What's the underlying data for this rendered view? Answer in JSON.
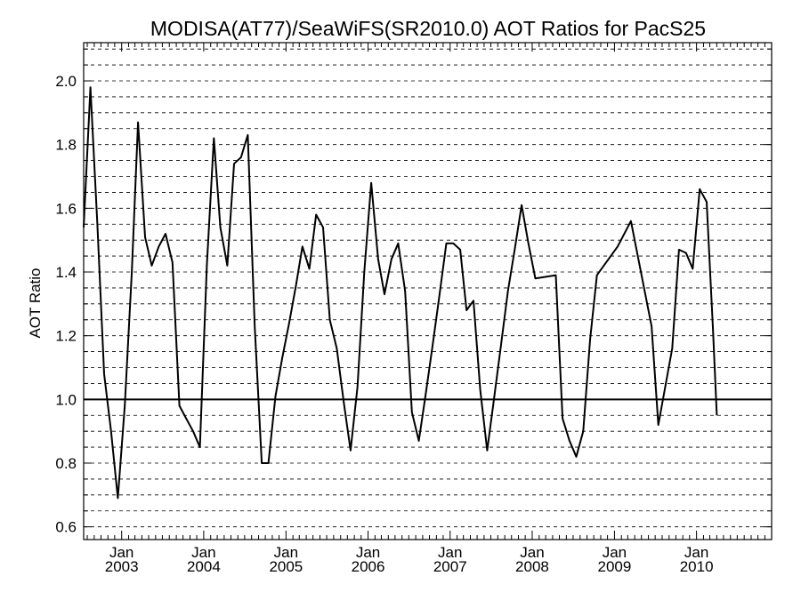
{
  "chart_data": {
    "type": "line",
    "title": "MODISA(AT77)/SeaWiFS(SR2010.0)  AOT Ratios for PacS25",
    "ylabel": "AOT Ratio",
    "xlabel": "",
    "ylim": [
      0.56,
      2.12
    ],
    "xlim": [
      "2002-07-16",
      "2010-12-01"
    ],
    "y_ticks": [
      0.6,
      0.8,
      1.0,
      1.2,
      1.4,
      1.6,
      1.8,
      2.0
    ],
    "y_tick_labels": [
      "0.6",
      "0.8",
      "1.0",
      "1.2",
      "1.4",
      "1.6",
      "1.8",
      "2.0"
    ],
    "x_ticks": [
      {
        "date": "2003-01-01",
        "month": "Jan",
        "year": "2003"
      },
      {
        "date": "2004-01-01",
        "month": "Jan",
        "year": "2004"
      },
      {
        "date": "2005-01-01",
        "month": "Jan",
        "year": "2005"
      },
      {
        "date": "2006-01-01",
        "month": "Jan",
        "year": "2006"
      },
      {
        "date": "2007-01-01",
        "month": "Jan",
        "year": "2007"
      },
      {
        "date": "2008-01-01",
        "month": "Jan",
        "year": "2008"
      },
      {
        "date": "2009-01-01",
        "month": "Jan",
        "year": "2009"
      },
      {
        "date": "2010-01-01",
        "month": "Jan",
        "year": "2010"
      }
    ],
    "grid": "horizontal dashed",
    "reference_line": 1.0,
    "series": [
      {
        "color": "#000000",
        "points": [
          [
            "2002-07-16",
            1.54
          ],
          [
            "2002-08-15",
            1.98
          ],
          [
            "2002-09-15",
            1.55
          ],
          [
            "2002-10-15",
            1.08
          ],
          [
            "2002-11-15",
            0.9
          ],
          [
            "2002-12-15",
            0.69
          ],
          [
            "2003-01-15",
            0.98
          ],
          [
            "2003-02-15",
            1.4
          ],
          [
            "2003-03-15",
            1.87
          ],
          [
            "2003-04-15",
            1.51
          ],
          [
            "2003-05-15",
            1.42
          ],
          [
            "2003-06-15",
            1.48
          ],
          [
            "2003-07-15",
            1.52
          ],
          [
            "2003-08-15",
            1.43
          ],
          [
            "2003-09-15",
            0.98
          ],
          [
            "2003-10-15",
            0.94
          ],
          [
            "2003-11-15",
            0.9
          ],
          [
            "2003-12-15",
            0.85
          ],
          [
            "2004-01-15",
            1.42
          ],
          [
            "2004-02-15",
            1.82
          ],
          [
            "2004-03-15",
            1.54
          ],
          [
            "2004-04-15",
            1.42
          ],
          [
            "2004-05-15",
            1.74
          ],
          [
            "2004-06-15",
            1.76
          ],
          [
            "2004-07-15",
            1.83
          ],
          [
            "2004-08-15",
            1.23
          ],
          [
            "2004-09-15",
            0.8
          ],
          [
            "2004-10-15",
            0.8
          ],
          [
            "2004-11-15",
            1.01
          ],
          [
            "2004-12-15",
            1.13
          ],
          [
            "2005-01-15",
            1.24
          ],
          [
            "2005-02-15",
            1.36
          ],
          [
            "2005-03-15",
            1.48
          ],
          [
            "2005-04-15",
            1.41
          ],
          [
            "2005-05-15",
            1.58
          ],
          [
            "2005-06-15",
            1.54
          ],
          [
            "2005-07-15",
            1.25
          ],
          [
            "2005-08-15",
            1.16
          ],
          [
            "2005-09-15",
            0.99
          ],
          [
            "2005-10-15",
            0.84
          ],
          [
            "2005-11-15",
            1.04
          ],
          [
            "2005-12-15",
            1.4
          ],
          [
            "2006-01-15",
            1.68
          ],
          [
            "2006-02-15",
            1.44
          ],
          [
            "2006-03-15",
            1.33
          ],
          [
            "2006-04-15",
            1.44
          ],
          [
            "2006-05-15",
            1.49
          ],
          [
            "2006-06-15",
            1.34
          ],
          [
            "2006-07-15",
            0.96
          ],
          [
            "2006-08-15",
            0.87
          ],
          [
            "2006-09-15",
            1.02
          ],
          [
            "2006-10-15",
            1.17
          ],
          [
            "2006-11-15",
            1.33
          ],
          [
            "2006-12-15",
            1.49
          ],
          [
            "2007-01-15",
            1.49
          ],
          [
            "2007-02-15",
            1.47
          ],
          [
            "2007-03-15",
            1.28
          ],
          [
            "2007-04-15",
            1.31
          ],
          [
            "2007-05-15",
            1.03
          ],
          [
            "2007-06-15",
            0.84
          ],
          [
            "2007-07-15",
            1.0
          ],
          [
            "2007-08-15",
            1.17
          ],
          [
            "2007-09-15",
            1.34
          ],
          [
            "2007-10-15",
            1.47
          ],
          [
            "2007-11-15",
            1.61
          ],
          [
            "2007-12-15",
            1.49
          ],
          [
            "2008-01-15",
            1.38
          ],
          [
            "2008-04-15",
            1.39
          ],
          [
            "2008-05-15",
            0.94
          ],
          [
            "2008-06-15",
            0.87
          ],
          [
            "2008-07-15",
            0.82
          ],
          [
            "2008-08-15",
            0.9
          ],
          [
            "2008-09-15",
            1.19
          ],
          [
            "2008-10-15",
            1.39
          ],
          [
            "2009-01-15",
            1.48
          ],
          [
            "2009-03-15",
            1.56
          ],
          [
            "2009-06-15",
            1.23
          ],
          [
            "2009-07-15",
            0.92
          ],
          [
            "2009-08-15",
            1.04
          ],
          [
            "2009-09-15",
            1.16
          ],
          [
            "2009-10-15",
            1.47
          ],
          [
            "2009-11-15",
            1.46
          ],
          [
            "2009-12-15",
            1.41
          ],
          [
            "2010-01-15",
            1.66
          ],
          [
            "2010-02-15",
            1.62
          ],
          [
            "2010-03-15",
            1.22
          ],
          [
            "2010-04-01",
            0.95
          ]
        ]
      }
    ]
  }
}
